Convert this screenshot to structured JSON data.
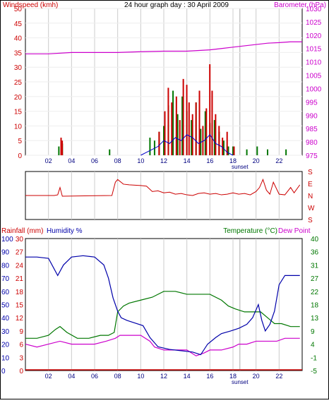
{
  "title": "24 hour graph day : 30 April 2009",
  "colors": {
    "windspeed": "#cc0000",
    "gust": "#cc0000",
    "avg": "#0000cc",
    "dir": "#cc0000",
    "pressure": "#cc00cc",
    "rain_axis": "#cc0000",
    "humidity": "#0000aa",
    "temperature": "#007700",
    "dewpoint": "#cc00cc",
    "grid": "#cccccc",
    "frame": "#000000"
  },
  "x_ticks": [
    "02",
    "04",
    "06",
    "08",
    "10",
    "12",
    "14",
    "16",
    "18",
    "20",
    "22"
  ],
  "sunset_label": "sunset",
  "chart_data": [
    {
      "type": "bar",
      "id": "wind",
      "title": "24 hour graph day : 30 April 2009",
      "ylabel": "Windspeed (kmh)",
      "y2label": "Barometer (hPa)",
      "ylim": [
        0,
        50
      ],
      "y2lim": [
        975,
        1030
      ],
      "yticks": [
        "0",
        "5",
        "10",
        "15",
        "20",
        "25",
        "30",
        "35",
        "40",
        "45",
        "50"
      ],
      "y2ticks": [
        "975",
        "980",
        "985",
        "990",
        "995",
        "1000",
        "1005",
        "1010",
        "1015",
        "1020",
        "1025",
        "1030"
      ],
      "xlim": [
        0,
        24
      ],
      "sunset_hour": 18.6,
      "gusts": {
        "x": [
          3.0,
          3.1,
          11.5,
          12.0,
          12.3,
          12.6,
          13.0,
          13.3,
          13.6,
          13.9,
          14.1,
          14.4,
          14.7,
          15.0,
          15.3,
          15.6,
          15.9,
          16.1,
          16.4,
          16.7,
          17.0,
          17.4,
          18.0
        ],
        "y": [
          6,
          5,
          8,
          15,
          23,
          18,
          20,
          12,
          26,
          24,
          18,
          14,
          18,
          22,
          10,
          16,
          31,
          22,
          14,
          10,
          6,
          8,
          3
        ]
      },
      "green_bars": {
        "x": [
          2.9,
          3.2,
          7.3,
          10.8,
          11.2,
          11.6,
          12.0,
          12.4,
          12.8,
          13.2,
          13.6,
          14.0,
          14.4,
          14.8,
          15.2,
          15.6,
          16.0,
          16.4,
          16.8,
          17.2,
          17.6,
          18.0,
          19.2,
          20.1,
          21.0,
          22.6
        ],
        "y": [
          3,
          4,
          2,
          6,
          5,
          8,
          10,
          17,
          22,
          14,
          20,
          15,
          12,
          18,
          9,
          15,
          11,
          12,
          8,
          5,
          3,
          3,
          2,
          3,
          2,
          2
        ]
      },
      "average": {
        "x": [
          10,
          10.5,
          11,
          11.5,
          12,
          12.5,
          13,
          13.5,
          14,
          14.5,
          15,
          15.5,
          16,
          16.5,
          17,
          17.5,
          18
        ],
        "y": [
          0,
          1,
          2,
          3,
          5,
          4,
          6,
          5,
          7,
          6,
          4,
          5,
          7,
          4,
          3,
          1,
          0
        ]
      },
      "pressure": {
        "x": [
          0,
          2,
          4,
          6,
          8,
          10,
          12,
          14,
          16,
          17,
          18,
          19,
          20,
          21,
          22,
          23,
          24
        ],
        "y": [
          1013,
          1013,
          1013.5,
          1013.5,
          1013.5,
          1013.8,
          1014,
          1014,
          1014.5,
          1015,
          1015.5,
          1016,
          1016.5,
          1017,
          1017.2,
          1017.5,
          1017.5
        ]
      }
    },
    {
      "type": "line",
      "id": "direction",
      "ylabel_ticks": [
        "S",
        "E",
        "N",
        "W",
        "S"
      ],
      "ylim": [
        0,
        360
      ],
      "x": [
        0,
        2.5,
        2.8,
        3.0,
        3.2,
        7.5,
        7.8,
        8.0,
        8.5,
        9.0,
        10.0,
        10.5,
        11.0,
        11.5,
        12.0,
        12.5,
        13.0,
        13.5,
        14.0,
        14.5,
        15.0,
        15.5,
        16.0,
        16.5,
        17.0,
        17.5,
        18.0,
        18.5,
        19.0,
        19.5,
        20.0,
        20.3,
        20.6,
        20.9,
        21.2,
        21.5,
        22.0,
        22.5,
        23.0,
        23.3,
        23.8
      ],
      "y": [
        180,
        180,
        175,
        120,
        185,
        180,
        80,
        60,
        95,
        100,
        105,
        110,
        150,
        145,
        160,
        155,
        170,
        165,
        175,
        180,
        165,
        160,
        170,
        165,
        175,
        170,
        160,
        170,
        165,
        175,
        150,
        120,
        60,
        140,
        170,
        80,
        170,
        175,
        120,
        160,
        100
      ]
    },
    {
      "type": "line",
      "id": "climate",
      "y1label": "Rainfall (mm)",
      "y2label": "Humidity %",
      "y3label": "Temperature (°C)",
      "y4label": "Dew Point",
      "rain_ticks": [
        "0",
        "3",
        "6",
        "9",
        "12",
        "15",
        "18",
        "21",
        "24",
        "27",
        "30"
      ],
      "hum_ticks": [
        "0",
        "10",
        "20",
        "30",
        "40",
        "50",
        "60",
        "70",
        "80",
        "90",
        "100"
      ],
      "temp_ticks": [
        "-5",
        "-1",
        "4",
        "9",
        "13",
        "18",
        "22",
        "27",
        "31",
        "36",
        "40"
      ],
      "ylim_humidity": [
        0,
        100
      ],
      "ylim_temp": [
        -5,
        40
      ],
      "humidity": {
        "x": [
          0,
          1,
          2,
          2.8,
          3.3,
          4,
          5,
          6,
          6.8,
          7.2,
          7.6,
          8.0,
          8.3,
          8.8,
          9.5,
          10.2,
          10.8,
          11.5,
          12.5,
          13.5,
          14.5,
          15.2,
          15.8,
          16.5,
          17.0,
          17.8,
          18.5,
          19.2,
          19.7,
          20.2,
          20.5,
          20.8,
          21.2,
          21.6,
          22.0,
          22.5,
          23.0,
          23.8
        ],
        "y": [
          86,
          86,
          85,
          72,
          80,
          86,
          87,
          86,
          80,
          70,
          55,
          45,
          40,
          38,
          36,
          34,
          25,
          18,
          16,
          15,
          14,
          12,
          20,
          25,
          28,
          30,
          32,
          35,
          40,
          50,
          38,
          30,
          35,
          45,
          65,
          72,
          72,
          72
        ]
      },
      "temperature": {
        "x": [
          0,
          1,
          2,
          2.6,
          3,
          3.6,
          4.5,
          5.5,
          6.5,
          7.2,
          7.7,
          8.0,
          8.5,
          9,
          10,
          11,
          12,
          13,
          14,
          15,
          16,
          17,
          17.6,
          18.2,
          19.0,
          19.6,
          20.4,
          21.0,
          21.6,
          22.2,
          23.0,
          23.8
        ],
        "y": [
          6,
          6,
          7,
          9,
          10,
          8,
          6,
          6,
          7,
          7,
          8,
          15,
          17,
          18,
          19,
          20,
          22,
          22,
          21,
          21,
          21,
          19,
          17,
          16,
          15,
          15,
          15,
          13,
          11,
          11,
          10,
          10
        ]
      },
      "dewpoint": {
        "x": [
          0,
          1,
          2,
          3,
          4,
          5,
          6,
          7,
          7.8,
          8.2,
          9,
          10,
          10.8,
          11.2,
          12,
          13,
          14,
          14.8,
          15.5,
          16,
          17,
          18,
          18.5,
          19.2,
          20,
          20.6,
          21.2,
          21.8,
          22.5,
          23.2,
          23.8
        ],
        "y": [
          4,
          3,
          4,
          5,
          4,
          4,
          4,
          5,
          6,
          7,
          7,
          7,
          5,
          3,
          2,
          2,
          2,
          0,
          1,
          2,
          2,
          3,
          4,
          4,
          5,
          5,
          5,
          5,
          6,
          6,
          6
        ]
      }
    }
  ]
}
